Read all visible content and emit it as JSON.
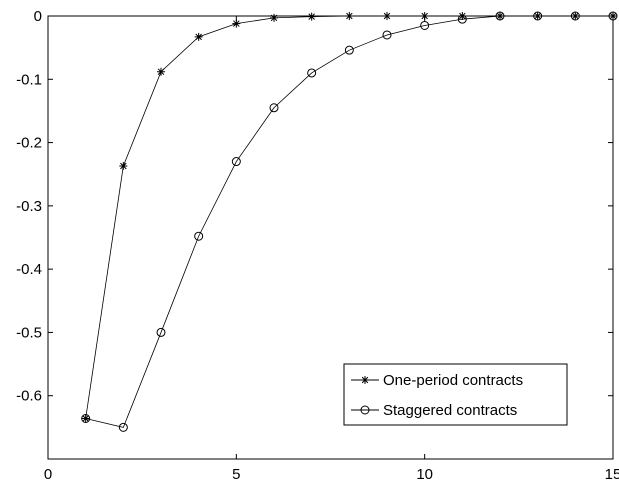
{
  "chart_data": {
    "type": "line",
    "title": "",
    "xlabel": "",
    "ylabel": "",
    "xlim": [
      0,
      15
    ],
    "ylim": [
      -0.7,
      0
    ],
    "xticks": [
      "0",
      "5",
      "10",
      "15"
    ],
    "yticks": [
      "0",
      "-0.1",
      "-0.2",
      "-0.3",
      "-0.4",
      "-0.5",
      "-0.6"
    ],
    "grid": false,
    "legend_position": "bottom-right",
    "x": [
      1,
      2,
      3,
      4,
      5,
      6,
      7,
      8,
      9,
      10,
      11,
      12,
      13,
      14,
      15
    ],
    "series": [
      {
        "name": "One-period contracts",
        "marker": "star",
        "values": [
          -0.636,
          -0.237,
          -0.088,
          -0.033,
          -0.012,
          -0.003,
          -0.001,
          0,
          0,
          0,
          0,
          0,
          0,
          0,
          0
        ]
      },
      {
        "name": "Staggered contracts",
        "marker": "circle",
        "values": [
          -0.636,
          -0.65,
          -0.5,
          -0.348,
          -0.23,
          -0.145,
          -0.09,
          -0.054,
          -0.03,
          -0.015,
          -0.005,
          0,
          0,
          0,
          0
        ]
      }
    ]
  }
}
